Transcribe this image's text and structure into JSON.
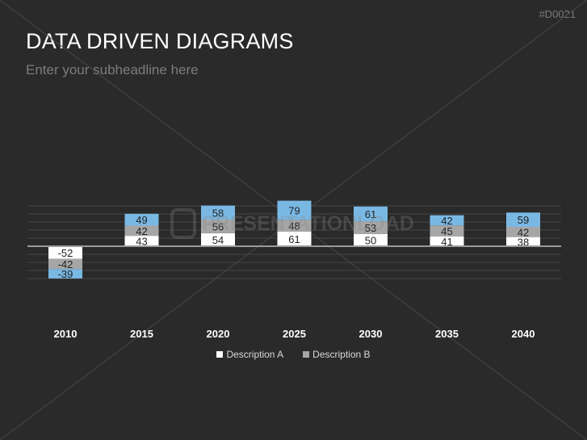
{
  "slide": {
    "id_label": "#D0021",
    "title": "DATA DRIVEN DIAGRAMS",
    "subtitle": "Enter your subheadline here",
    "watermark": "PRESENTATIONLOAD"
  },
  "colors": {
    "background": "#2a2a2a",
    "series_a": "#ffffff",
    "series_b": "#a6a6a6",
    "series_c": "#7ab8e4",
    "gridline": "#454545",
    "axis": "#9a9a9a"
  },
  "chart_data": {
    "type": "bar",
    "stacked": true,
    "categories": [
      "2010",
      "2015",
      "2020",
      "2025",
      "2030",
      "2035",
      "2040"
    ],
    "series": [
      {
        "name": "Description A",
        "values": [
          -52,
          43,
          54,
          61,
          50,
          41,
          38
        ]
      },
      {
        "name": "Description B",
        "values": [
          -42,
          42,
          56,
          48,
          53,
          45,
          42
        ]
      },
      {
        "values": [
          -39,
          49,
          58,
          79,
          61,
          42,
          59
        ]
      }
    ],
    "ylim": [
      -150,
      200
    ],
    "grid": true,
    "legend_position": "bottom"
  }
}
